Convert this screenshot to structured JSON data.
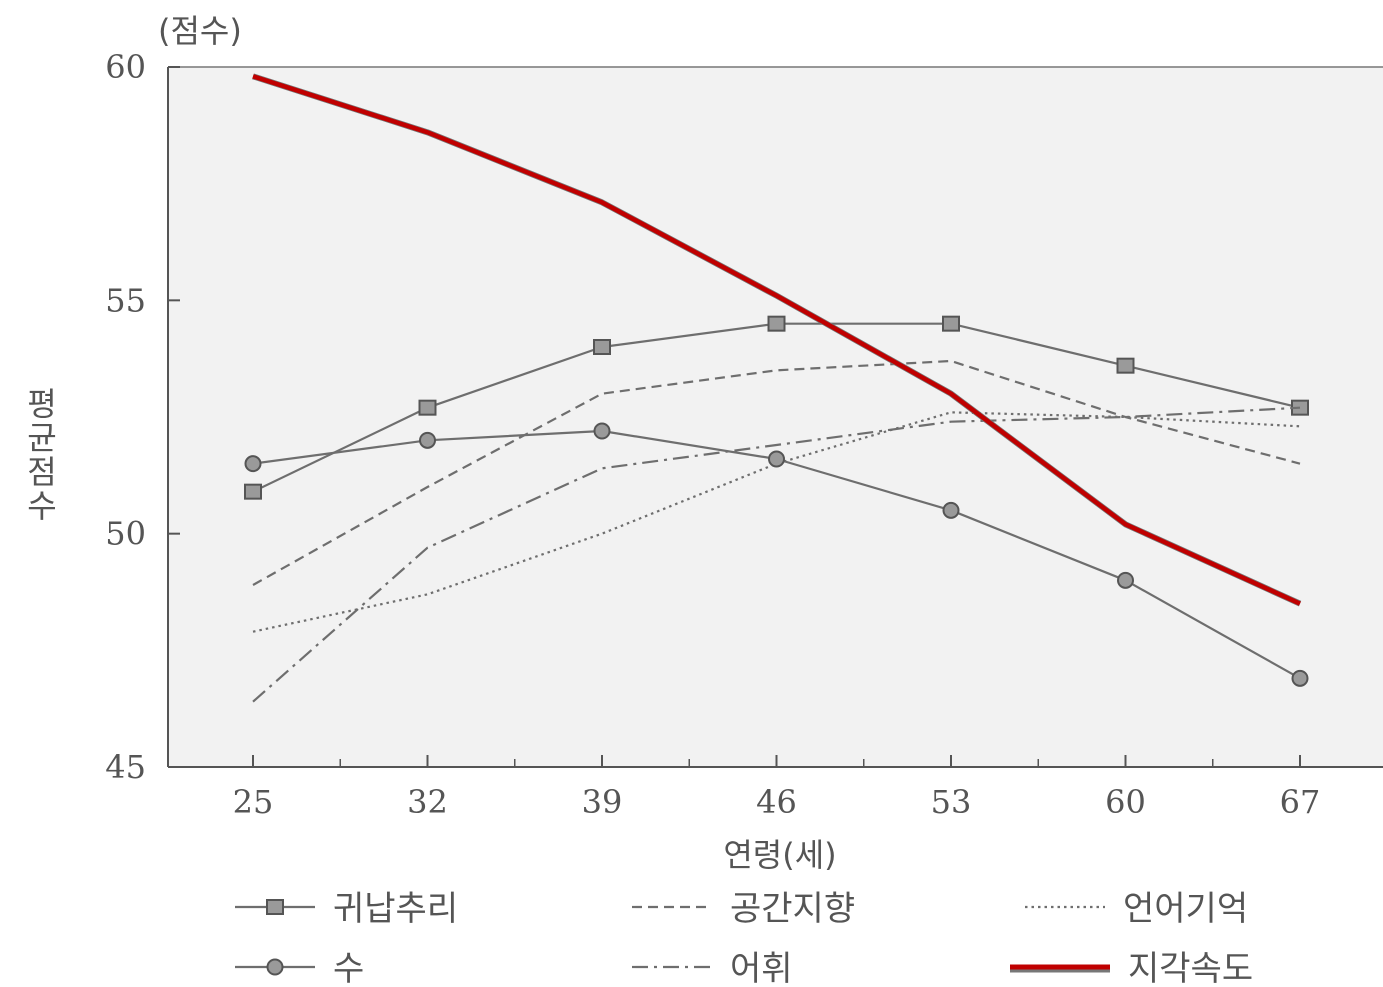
{
  "chart_data": {
    "type": "line",
    "title": "",
    "y_unit_label": "(점수)",
    "xlabel": "연령(세)",
    "ylabel": "평균점수",
    "x": [
      25,
      32,
      39,
      46,
      53,
      60,
      67
    ],
    "xlim": [
      25,
      67
    ],
    "ylim": [
      45,
      60
    ],
    "yticks": [
      45,
      50,
      55,
      60
    ],
    "grid": false,
    "legend_position": "bottom",
    "series": [
      {
        "name": "귀납추리",
        "style": "solid-square-marker",
        "color": "#6e6e6e",
        "values": [
          50.9,
          52.7,
          54.0,
          54.5,
          54.5,
          53.6,
          52.7
        ]
      },
      {
        "name": "공간지향",
        "style": "dashed",
        "color": "#6e6e6e",
        "values": [
          48.9,
          51.0,
          53.0,
          53.5,
          53.7,
          52.5,
          51.5
        ]
      },
      {
        "name": "언어기억",
        "style": "dotted",
        "color": "#6e6e6e",
        "values": [
          47.9,
          48.7,
          50.0,
          51.5,
          52.6,
          52.5,
          52.3
        ]
      },
      {
        "name": "수",
        "style": "solid-circle-marker",
        "color": "#6e6e6e",
        "values": [
          51.5,
          52.0,
          52.2,
          51.6,
          50.5,
          49.0,
          46.9
        ]
      },
      {
        "name": "어휘",
        "style": "dash-dot",
        "color": "#6e6e6e",
        "values": [
          46.4,
          49.7,
          51.4,
          51.9,
          52.4,
          52.5,
          52.7
        ]
      },
      {
        "name": "지각속도",
        "style": "thick-red",
        "color": "#c00000",
        "values": [
          59.8,
          58.6,
          57.1,
          55.1,
          53.0,
          50.2,
          48.5
        ]
      }
    ]
  },
  "colors": {
    "plot_background": "#f2f2f2",
    "axis": "#555555",
    "highlight": "#c00000"
  }
}
